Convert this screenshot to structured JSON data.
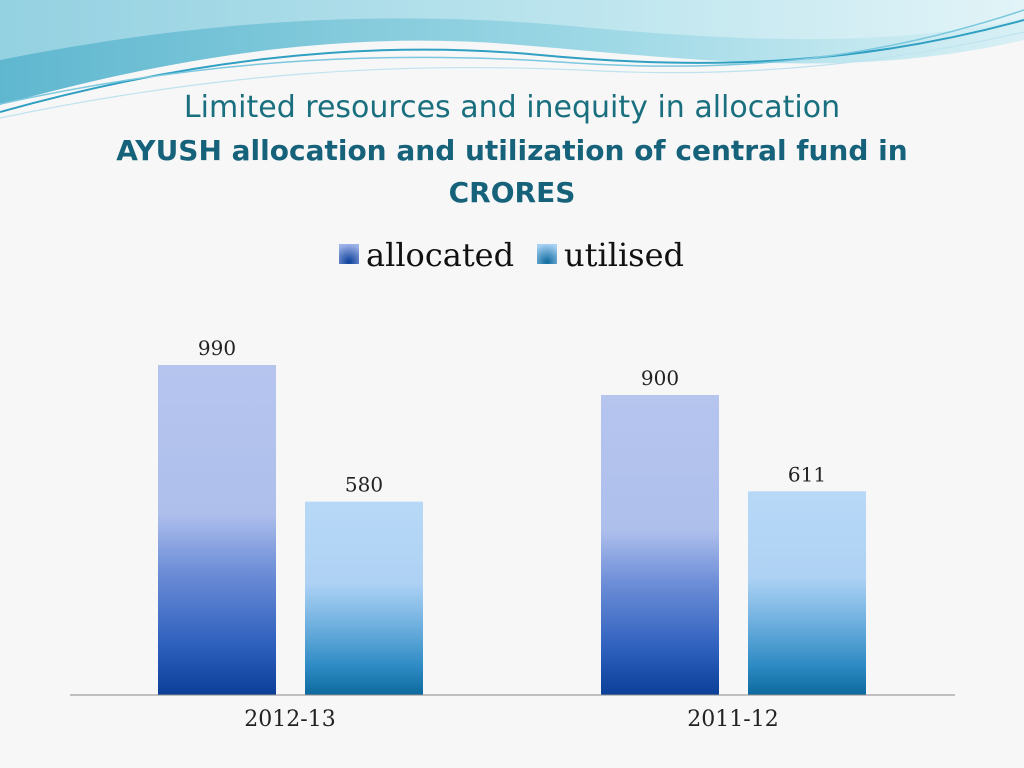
{
  "slide": {
    "title": "Limited resources and inequity in allocation",
    "subtitle": "AYUSH allocation and utilization of central fund in CRORES"
  },
  "chart_data": {
    "type": "bar",
    "categories": [
      "2012-13",
      "2011-12"
    ],
    "series": [
      {
        "name": "allocated",
        "values": [
          990,
          900
        ]
      },
      {
        "name": "utilised",
        "values": [
          580,
          611
        ]
      }
    ],
    "ylim": [
      0,
      1000
    ],
    "grid": false,
    "legend": "top-center",
    "data_labels": true,
    "colors": {
      "allocated_light": "#b4c4ee",
      "allocated_dark": "#0b3f98",
      "utilised_light": "#b4d6f6",
      "utilised_dark": "#0d6a9e"
    }
  }
}
